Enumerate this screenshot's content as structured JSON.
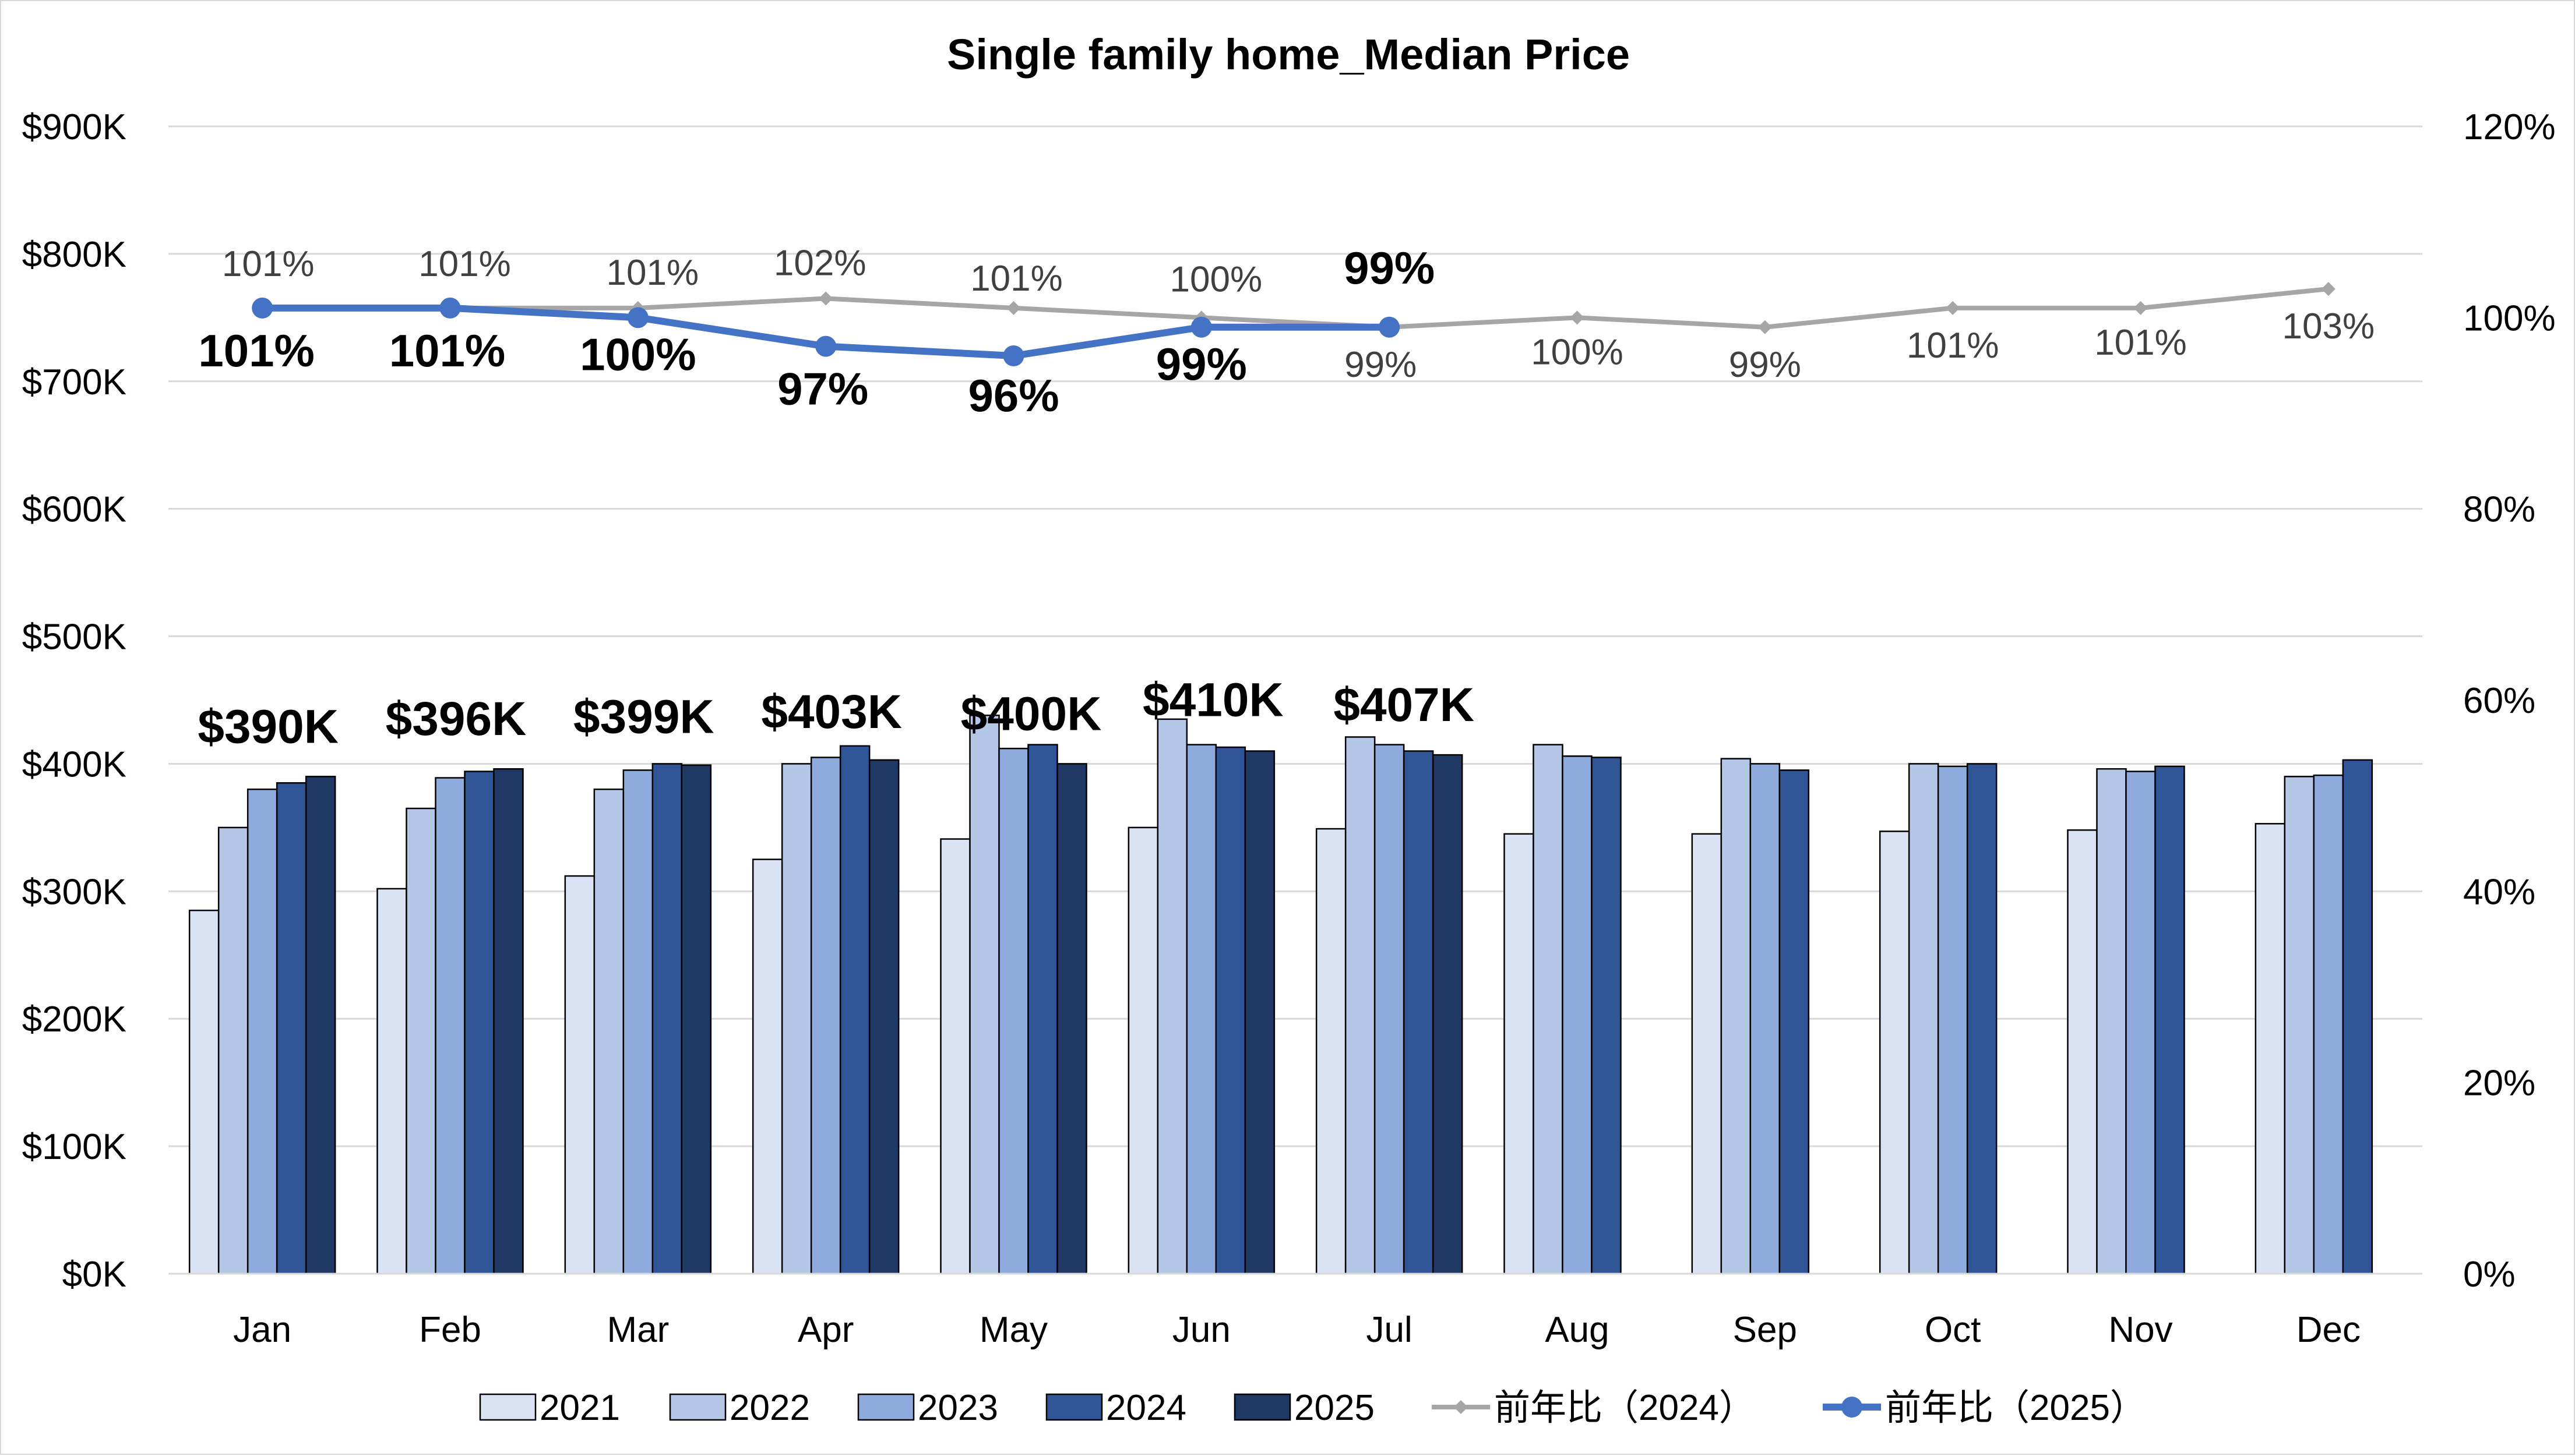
{
  "chart_data": {
    "type": "bar",
    "title": "Single family home_Median Price",
    "categories": [
      "Jan",
      "Feb",
      "Mar",
      "Apr",
      "May",
      "Jun",
      "Jul",
      "Aug",
      "Sep",
      "Oct",
      "Nov",
      "Dec"
    ],
    "y_left": {
      "range": [
        0,
        900000
      ],
      "tick_values": [
        0,
        100000,
        200000,
        300000,
        400000,
        500000,
        600000,
        700000,
        800000,
        900000
      ],
      "tick_labels": [
        "$0K",
        "$100K",
        "$200K",
        "$300K",
        "$400K",
        "$500K",
        "$600K",
        "$700K",
        "$800K",
        "$900K"
      ]
    },
    "y_right": {
      "range": [
        0,
        1.2
      ],
      "tick_values": [
        0,
        0.2,
        0.4,
        0.6,
        0.8,
        1.0,
        1.2
      ],
      "tick_labels": [
        "0%",
        "20%",
        "40%",
        "60%",
        "80%",
        "100%",
        "120%"
      ]
    },
    "grid": true,
    "legend_position": "bottom",
    "series": [
      {
        "name": "2021",
        "type": "bar",
        "color": "#dae3f3",
        "values": [
          285000,
          302000,
          312000,
          325000,
          341000,
          350000,
          349000,
          345000,
          345000,
          347000,
          348000,
          353000
        ]
      },
      {
        "name": "2022",
        "type": "bar",
        "color": "#b4c7e7",
        "values": [
          350000,
          365000,
          380000,
          400000,
          438000,
          435000,
          421000,
          415000,
          404000,
          400000,
          396000,
          390000
        ]
      },
      {
        "name": "2023",
        "type": "bar",
        "color": "#8faadc",
        "values": [
          380000,
          389000,
          395000,
          405000,
          412000,
          415000,
          415000,
          406000,
          400000,
          398000,
          394000,
          391000
        ]
      },
      {
        "name": "2024",
        "type": "bar",
        "color": "#2f5597",
        "values": [
          385000,
          394000,
          400000,
          414000,
          415000,
          413000,
          410000,
          405000,
          395000,
          400000,
          398000,
          403000
        ]
      },
      {
        "name": "2025",
        "type": "bar",
        "color": "#203864",
        "values": [
          390000,
          396000,
          399000,
          403000,
          400000,
          410000,
          407000,
          null,
          null,
          null,
          null,
          null
        ],
        "data_labels": [
          "$390K",
          "$396K",
          "$399K",
          "$403K",
          "$400K",
          "$410K",
          "$407K"
        ]
      },
      {
        "name": "前年比（2024）",
        "type": "line",
        "axis": "right",
        "color": "#a6a6a6",
        "values": [
          1.01,
          1.01,
          1.01,
          1.02,
          1.01,
          1.0,
          0.99,
          1.0,
          0.99,
          1.01,
          1.01,
          1.03
        ],
        "data_labels": [
          "101%",
          "101%",
          "101%",
          "102%",
          "101%",
          "100%",
          "99%",
          "100%",
          "99%",
          "101%",
          "101%",
          "103%"
        ]
      },
      {
        "name": "前年比（2025）",
        "type": "line",
        "axis": "right",
        "color": "#4472c4",
        "values": [
          1.01,
          1.01,
          1.0,
          0.97,
          0.96,
          0.99,
          0.99,
          null,
          null,
          null,
          null,
          null
        ],
        "data_labels": [
          "101%",
          "101%",
          "100%",
          "97%",
          "96%",
          "99%",
          "99%"
        ]
      }
    ]
  }
}
